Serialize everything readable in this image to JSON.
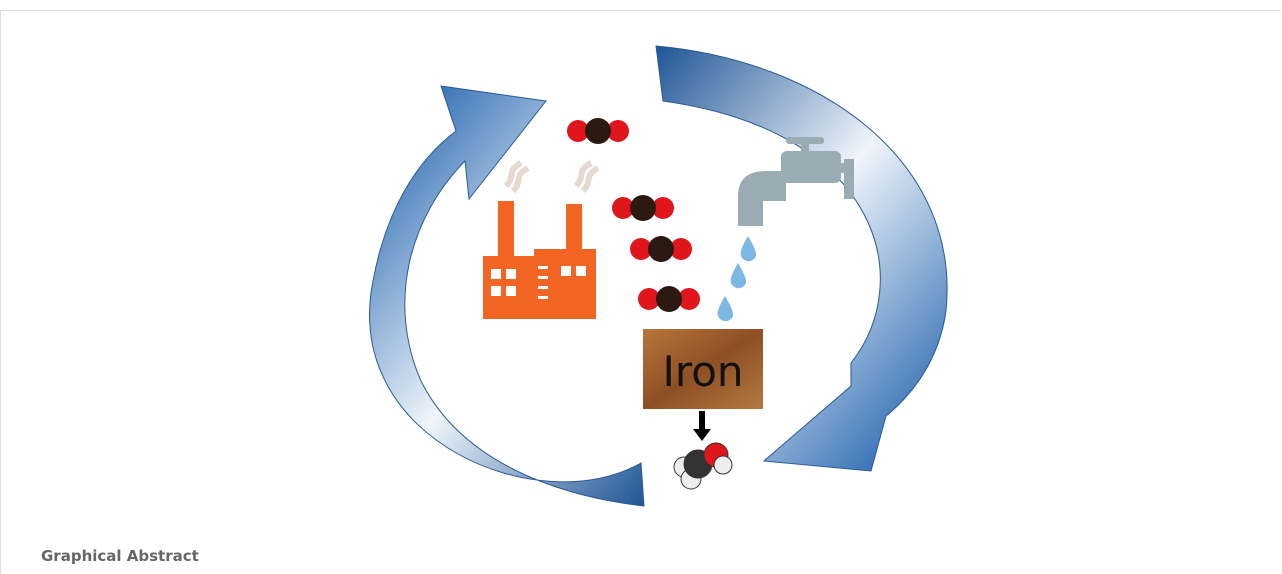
{
  "figure": {
    "label": "Iron"
  },
  "caption": "Graphical Abstract"
}
